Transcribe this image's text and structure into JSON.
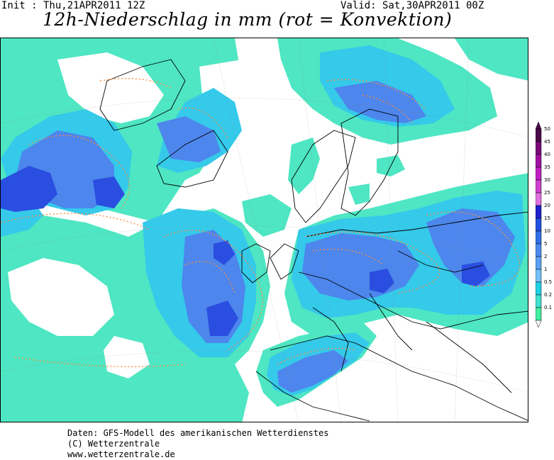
{
  "header": {
    "init": "Init : Thu,21APR2011 12Z",
    "valid": "Valid: Sat,30APR2011 00Z",
    "title": "12h-Niederschlag in mm (rot = Konvektion)"
  },
  "legend": {
    "levels": [
      "50",
      "45",
      "40",
      "35",
      "30",
      "25",
      "20",
      "15",
      "10",
      "5",
      "2",
      "1",
      "0.5",
      "0.2",
      "0.1"
    ],
    "colors": [
      "#4a0b4a",
      "#7a0a7a",
      "#a010a0",
      "#c020c0",
      "#d040d0",
      "#e070e0",
      "#2020d0",
      "#2050e0",
      "#3070e8",
      "#4a8af0",
      "#5aa0f5",
      "#70c0f8",
      "#20d0e8",
      "#40e0d0",
      "#40f0a0"
    ]
  },
  "footer": {
    "line1": "Daten: GFS-Modell des amerikanischen Wetterdienstes",
    "line2": "(C) Wetterzentrale",
    "line3": "www.wetterzentrale.de"
  }
}
